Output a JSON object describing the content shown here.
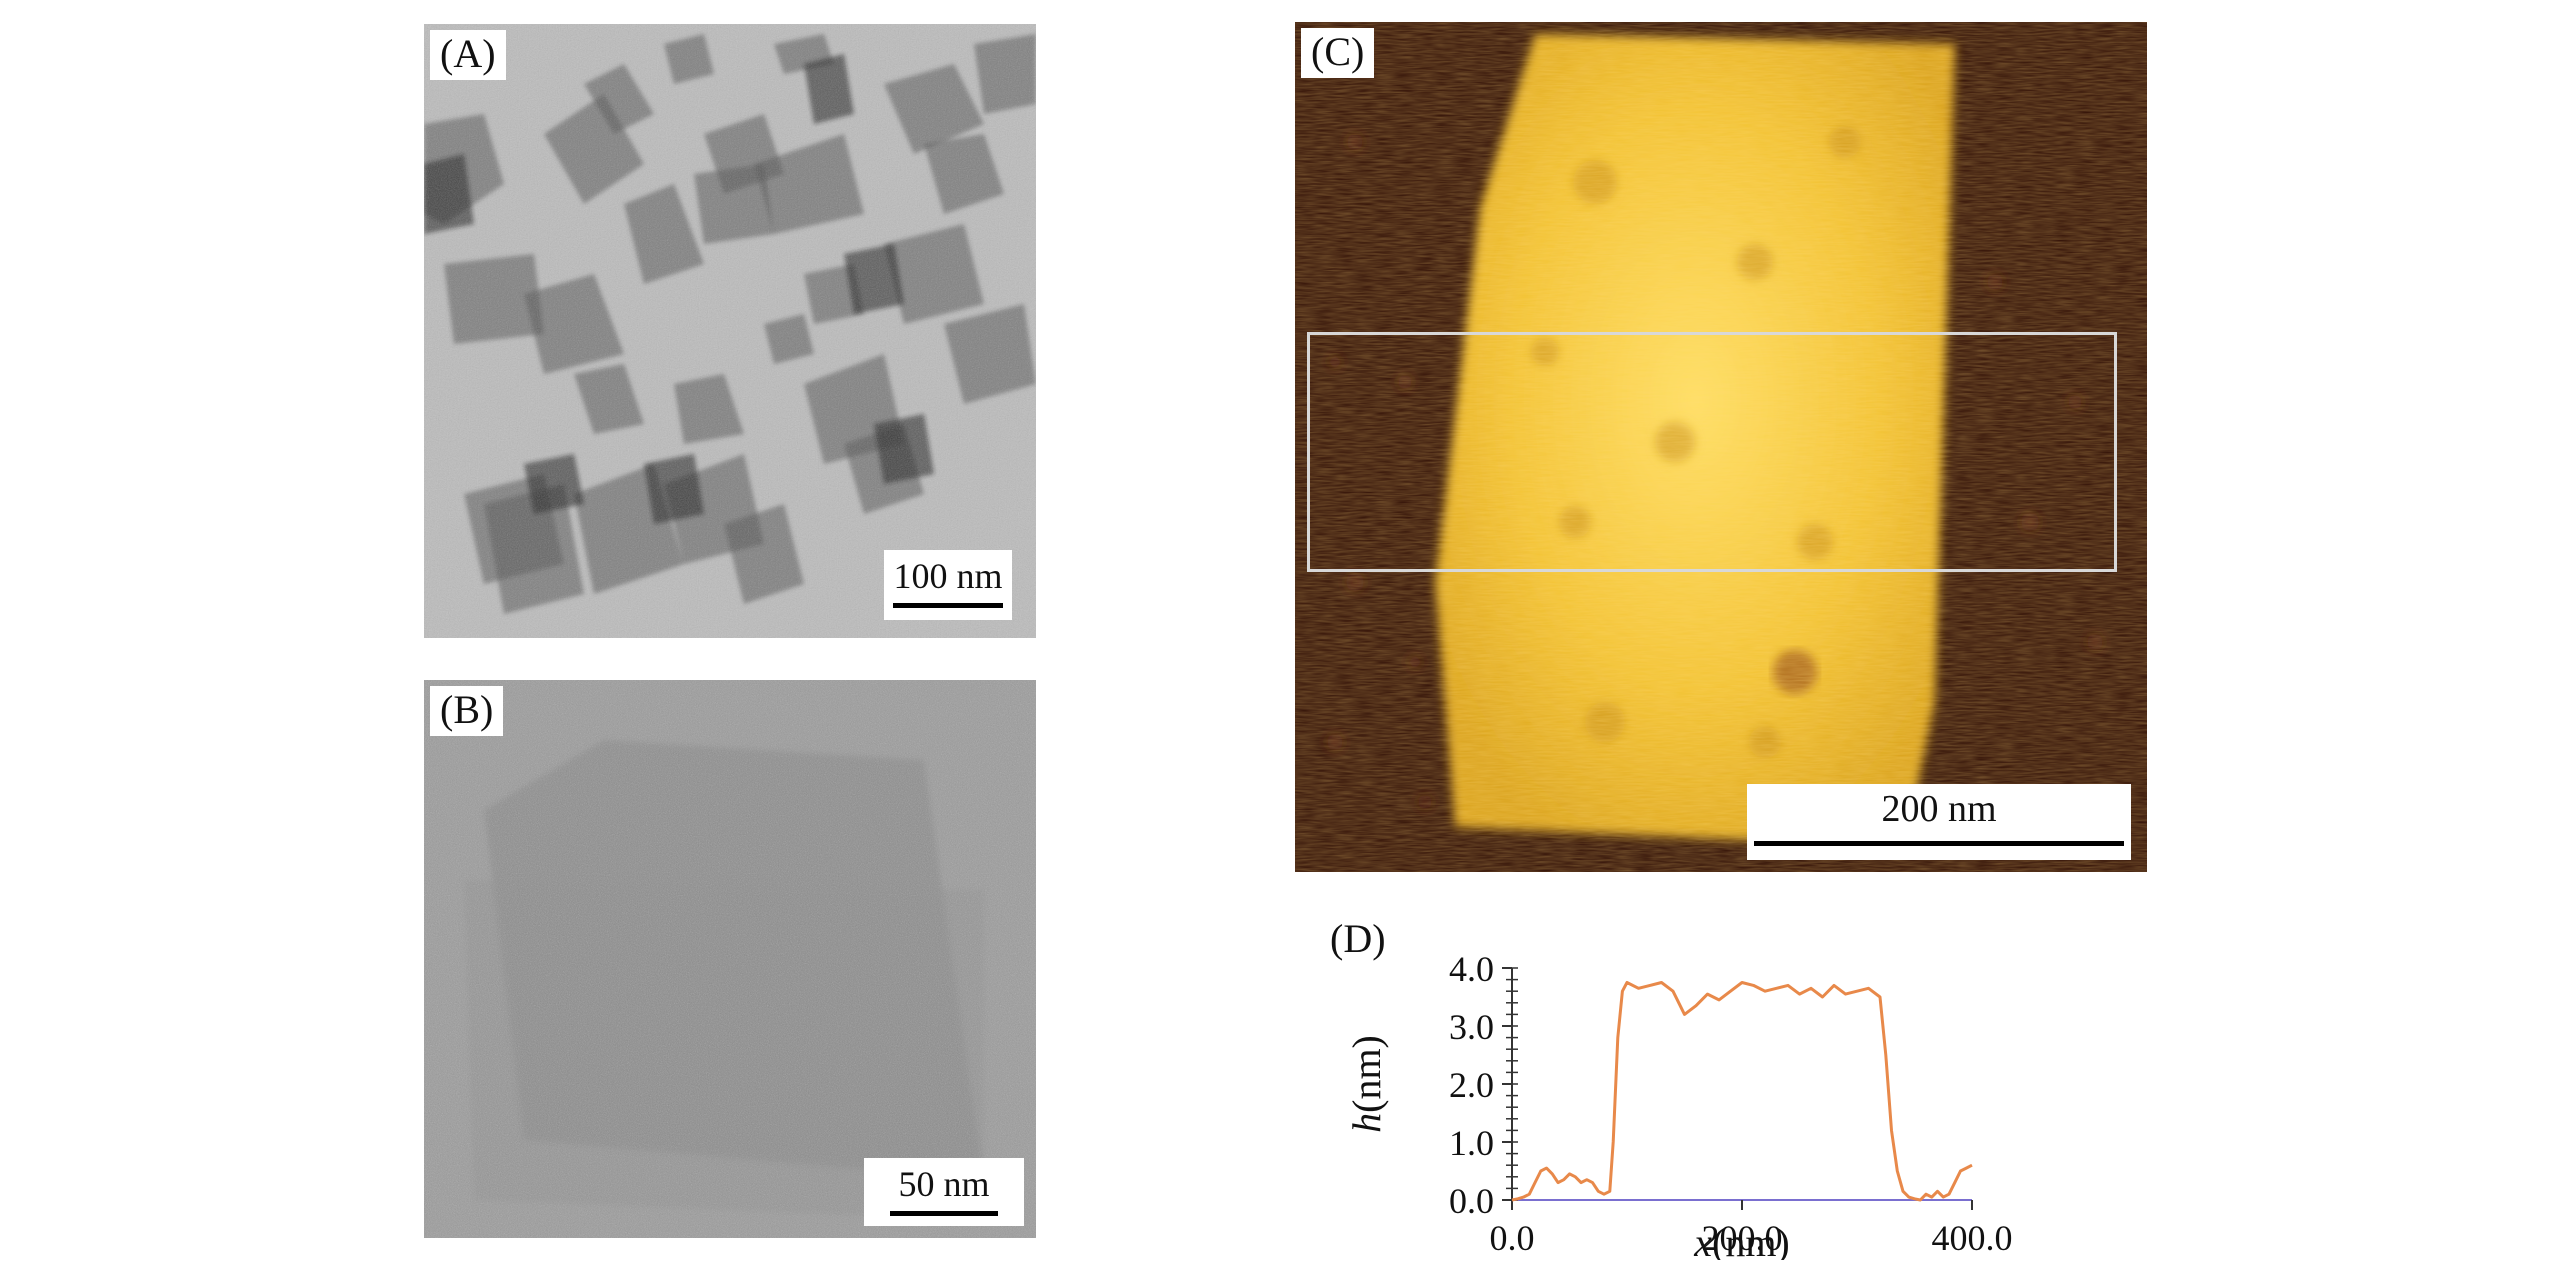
{
  "panels": {
    "a": {
      "label": "(A)",
      "scale_text": "100 nm"
    },
    "b": {
      "label": "(B)",
      "scale_text": "50 nm"
    },
    "c": {
      "label": "(C)",
      "scale_text": "200 nm"
    },
    "d": {
      "label": "(D)"
    }
  },
  "chart_data": {
    "type": "line",
    "title": "",
    "xlabel_var": "x",
    "xlabel_unit": "(nm)",
    "ylabel_var": "h",
    "ylabel_unit": "(nm)",
    "xlim": [
      0,
      400
    ],
    "ylim": [
      0,
      4.0
    ],
    "xticks": [
      "0.0",
      "200.0",
      "400.0"
    ],
    "yticks": [
      "0.0",
      "1.0",
      "2.0",
      "3.0",
      "4.0"
    ],
    "line_color": "#e8894a",
    "series": [
      {
        "x": [
          0,
          5,
          10,
          15,
          20,
          25,
          30,
          35,
          40,
          45,
          50,
          55,
          60,
          65,
          70,
          75,
          80,
          85,
          88,
          92,
          96,
          100,
          110,
          120,
          130,
          140,
          150,
          160,
          170,
          180,
          190,
          200,
          210,
          220,
          230,
          240,
          250,
          260,
          270,
          280,
          290,
          300,
          310,
          320,
          325,
          330,
          335,
          340,
          345,
          350,
          355,
          360,
          365,
          370,
          375,
          380,
          385,
          390,
          395,
          400
        ],
        "y": [
          0.0,
          0.02,
          0.05,
          0.1,
          0.3,
          0.5,
          0.55,
          0.45,
          0.3,
          0.35,
          0.45,
          0.4,
          0.3,
          0.35,
          0.3,
          0.15,
          0.1,
          0.15,
          1.0,
          2.8,
          3.6,
          3.75,
          3.65,
          3.7,
          3.75,
          3.6,
          3.2,
          3.35,
          3.55,
          3.45,
          3.6,
          3.75,
          3.7,
          3.6,
          3.65,
          3.7,
          3.55,
          3.65,
          3.5,
          3.7,
          3.55,
          3.6,
          3.65,
          3.5,
          2.5,
          1.2,
          0.5,
          0.15,
          0.05,
          0.02,
          0.0,
          0.1,
          0.05,
          0.15,
          0.05,
          0.1,
          0.3,
          0.5,
          0.55,
          0.6
        ]
      }
    ]
  }
}
